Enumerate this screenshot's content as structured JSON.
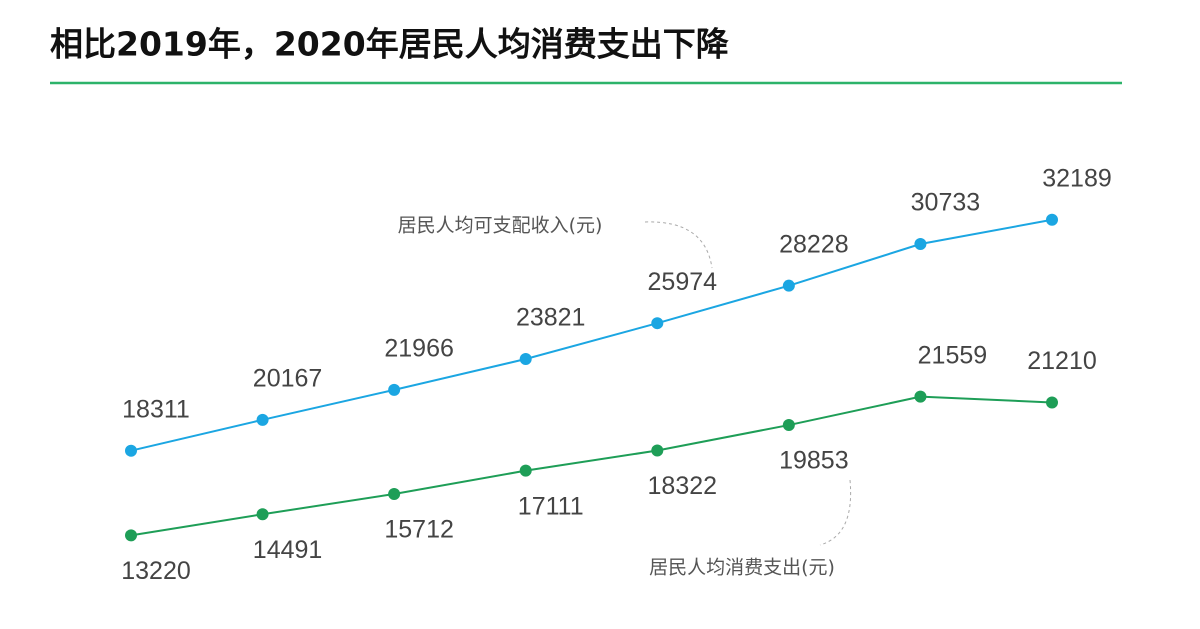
{
  "chart_data": {
    "type": "line",
    "title": "相比2019年，2020年居民人均消费支出下降",
    "categories": [
      null,
      null,
      null,
      null,
      null,
      null,
      null,
      null
    ],
    "ylim": [
      10000,
      35000
    ],
    "series": [
      {
        "name": "居民人均可支配收入(元)",
        "color": "#1ba6e2",
        "values": [
          18311,
          20167,
          21966,
          23821,
          25974,
          28228,
          30733,
          32189
        ]
      },
      {
        "name": "居民人均消费支出(元)",
        "color": "#1e9e57",
        "values": [
          13220,
          14491,
          15712,
          17111,
          18322,
          19853,
          21559,
          21210
        ]
      }
    ]
  }
}
